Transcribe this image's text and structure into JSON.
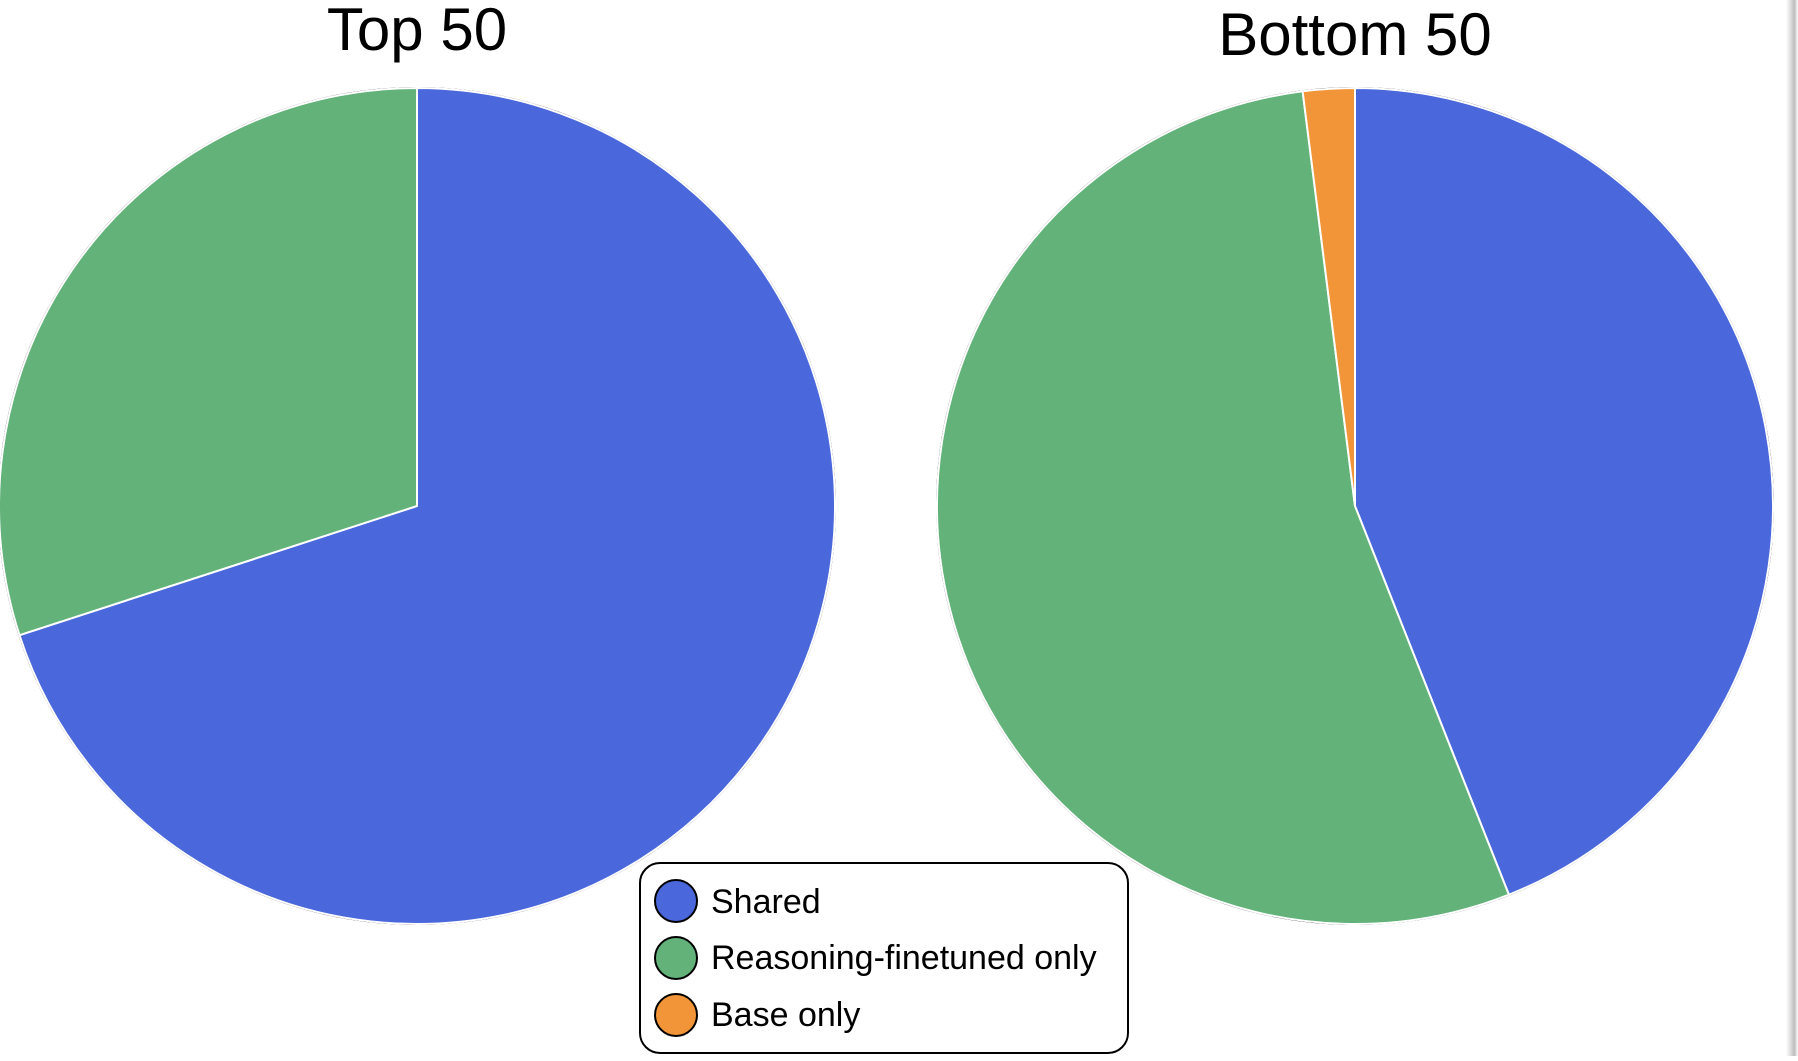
{
  "chart_data": [
    {
      "type": "pie",
      "title": "Top 50",
      "categories": [
        "Shared",
        "Reasoning-finetuned only",
        "Base only"
      ],
      "values": [
        35,
        15,
        0
      ],
      "colors": [
        "#4a68db",
        "#62b27a",
        "#f29538"
      ],
      "start_angle": "12 o'clock",
      "direction": "clockwise"
    },
    {
      "type": "pie",
      "title": "Bottom 50",
      "categories": [
        "Shared",
        "Reasoning-finetuned only",
        "Base only"
      ],
      "values": [
        22,
        27,
        1
      ],
      "colors": [
        "#4a68db",
        "#62b27a",
        "#f29538"
      ],
      "start_angle": "12 o'clock",
      "direction": "clockwise"
    }
  ],
  "legend": {
    "placement": "bottom-center",
    "items": [
      {
        "label": "Shared",
        "color": "#4a68db"
      },
      {
        "label": "Reasoning-finetuned only",
        "color": "#62b27a"
      },
      {
        "label": "Base only",
        "color": "#f29538"
      }
    ]
  }
}
